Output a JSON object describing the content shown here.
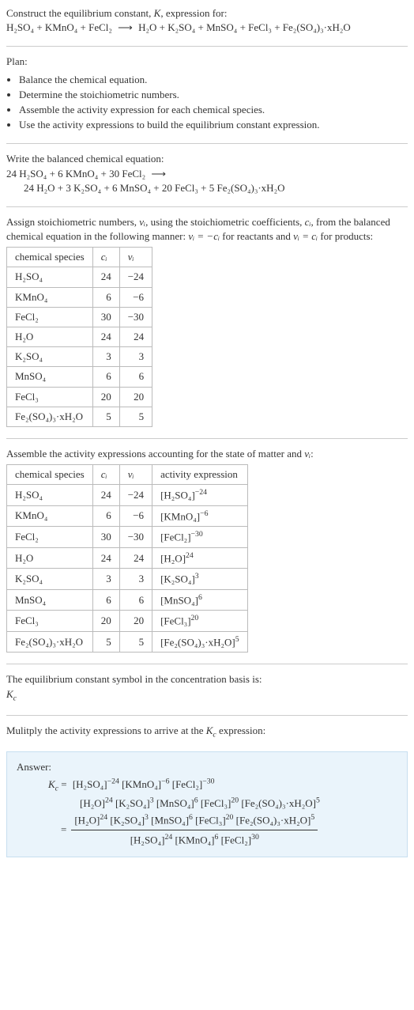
{
  "prompt": {
    "line1_pre": "Construct the equilibrium constant, ",
    "line1_post": ", expression for:",
    "K": "K",
    "reaction_lhs": "H₂SO₄ + KMnO₄ + FeCl₂",
    "reaction_rhs": "H₂O + K₂SO₄ + MnSO₄ + FeCl₃ + Fe₂(SO₄)₃·xH₂O",
    "arrow": "⟶"
  },
  "plan": {
    "title": "Plan:",
    "items": [
      "Balance the chemical equation.",
      "Determine the stoichiometric numbers.",
      "Assemble the activity expression for each chemical species.",
      "Use the activity expressions to build the equilibrium constant expression."
    ]
  },
  "balanced": {
    "title": "Write the balanced chemical equation:",
    "lhs": "24 H₂SO₄ + 6 KMnO₄ + 30 FeCl₂",
    "arrow": "⟶",
    "rhs": "24 H₂O + 3 K₂SO₄ + 6 MnSO₄ + 20 FeCl₃ + 5 Fe₂(SO₄)₃·xH₂O"
  },
  "assign": {
    "text_pre": "Assign stoichiometric numbers, ",
    "nu": "νᵢ",
    "text_mid1": ", using the stoichiometric coefficients, ",
    "ci": "cᵢ",
    "text_mid2": ", from the balanced chemical equation in the following manner: ",
    "rel_react": "νᵢ = −cᵢ",
    "text_react": " for reactants and ",
    "rel_prod": "νᵢ = cᵢ",
    "text_prod": " for products:"
  },
  "table1": {
    "headers": [
      "chemical species",
      "cᵢ",
      "νᵢ"
    ],
    "rows": [
      [
        "H₂SO₄",
        "24",
        "−24"
      ],
      [
        "KMnO₄",
        "6",
        "−6"
      ],
      [
        "FeCl₂",
        "30",
        "−30"
      ],
      [
        "H₂O",
        "24",
        "24"
      ],
      [
        "K₂SO₄",
        "3",
        "3"
      ],
      [
        "MnSO₄",
        "6",
        "6"
      ],
      [
        "FeCl₃",
        "20",
        "20"
      ],
      [
        "Fe₂(SO₄)₃·xH₂O",
        "5",
        "5"
      ]
    ]
  },
  "assemble": {
    "text_pre": "Assemble the activity expressions accounting for the state of matter and ",
    "nu": "νᵢ",
    "text_post": ":"
  },
  "table2": {
    "headers": [
      "chemical species",
      "cᵢ",
      "νᵢ",
      "activity expression"
    ],
    "rows": [
      {
        "sp": "H₂SO₄",
        "c": "24",
        "v": "−24",
        "base": "[H₂SO₄]",
        "exp": "−24"
      },
      {
        "sp": "KMnO₄",
        "c": "6",
        "v": "−6",
        "base": "[KMnO₄]",
        "exp": "−6"
      },
      {
        "sp": "FeCl₂",
        "c": "30",
        "v": "−30",
        "base": "[FeCl₂]",
        "exp": "−30"
      },
      {
        "sp": "H₂O",
        "c": "24",
        "v": "24",
        "base": "[H₂O]",
        "exp": "24"
      },
      {
        "sp": "K₂SO₄",
        "c": "3",
        "v": "3",
        "base": "[K₂SO₄]",
        "exp": "3"
      },
      {
        "sp": "MnSO₄",
        "c": "6",
        "v": "6",
        "base": "[MnSO₄]",
        "exp": "6"
      },
      {
        "sp": "FeCl₃",
        "c": "20",
        "v": "20",
        "base": "[FeCl₃]",
        "exp": "20"
      },
      {
        "sp": "Fe₂(SO₄)₃·xH₂O",
        "c": "5",
        "v": "5",
        "base": "[Fe₂(SO₄)₃·xH₂O]",
        "exp": "5"
      }
    ]
  },
  "concbasis": {
    "line1": "The equilibrium constant symbol in the concentration basis is:",
    "symbol": "K_c"
  },
  "multiply": {
    "text_pre": "Mulitply the activity expressions to arrive at the ",
    "kc": "K_c",
    "text_post": " expression:"
  },
  "answer": {
    "label": "Answer:",
    "kc": "K_c",
    "line1_terms": [
      {
        "base": "[H₂SO₄]",
        "exp": "−24"
      },
      {
        "base": "[KMnO₄]",
        "exp": "−6"
      },
      {
        "base": "[FeCl₂]",
        "exp": "−30"
      }
    ],
    "line2_terms": [
      {
        "base": "[H₂O]",
        "exp": "24"
      },
      {
        "base": "[K₂SO₄]",
        "exp": "3"
      },
      {
        "base": "[MnSO₄]",
        "exp": "6"
      },
      {
        "base": "[FeCl₃]",
        "exp": "20"
      },
      {
        "base": "[Fe₂(SO₄)₃·xH₂O]",
        "exp": "5"
      }
    ],
    "frac_num_terms": [
      {
        "base": "[H₂O]",
        "exp": "24"
      },
      {
        "base": "[K₂SO₄]",
        "exp": "3"
      },
      {
        "base": "[MnSO₄]",
        "exp": "6"
      },
      {
        "base": "[FeCl₃]",
        "exp": "20"
      },
      {
        "base": "[Fe₂(SO₄)₃·xH₂O]",
        "exp": "5"
      }
    ],
    "frac_den_terms": [
      {
        "base": "[H₂SO₄]",
        "exp": "24"
      },
      {
        "base": "[KMnO₄]",
        "exp": "6"
      },
      {
        "base": "[FeCl₂]",
        "exp": "30"
      }
    ]
  },
  "style": {
    "body_font_size": 13,
    "body_color": "#333333",
    "hr_color": "#cccccc",
    "table_border_color": "#bbbbbb",
    "answer_bg": "#eaf4fb",
    "answer_border": "#c7dff0"
  }
}
